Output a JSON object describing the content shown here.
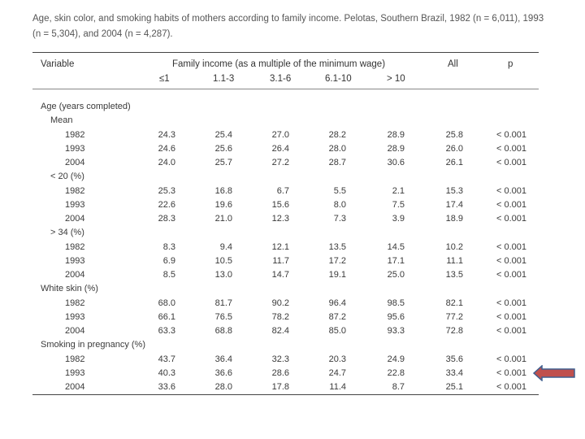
{
  "caption": "Age, skin color, and smoking habits of mothers according to family income. Pelotas, Southern Brazil, 1982 (n = 6,011), 1993 (n = 5,304), and 2004 (n = 4,287).",
  "header": {
    "variable": "Variable",
    "group": "Family income (as a multiple of the minimum wage)",
    "all": "All",
    "p": "p",
    "income_cols": [
      "≤1",
      "1.1-3",
      "3.1-6",
      "6.1-10",
      "> 10"
    ]
  },
  "rows": [
    {
      "label": "Age (years completed)",
      "level": 0,
      "values": []
    },
    {
      "label": "Mean",
      "level": 1,
      "values": []
    },
    {
      "label": "1982",
      "level": 2,
      "values": [
        "24.3",
        "25.4",
        "27.0",
        "28.2",
        "28.9",
        "25.8",
        "< 0.001"
      ]
    },
    {
      "label": "1993",
      "level": 2,
      "values": [
        "24.6",
        "25.6",
        "26.4",
        "28.0",
        "28.9",
        "26.0",
        "< 0.001"
      ]
    },
    {
      "label": "2004",
      "level": 2,
      "values": [
        "24.0",
        "25.7",
        "27.2",
        "28.7",
        "30.6",
        "26.1",
        "< 0.001"
      ]
    },
    {
      "label": "< 20 (%)",
      "level": 1,
      "values": []
    },
    {
      "label": "1982",
      "level": 2,
      "values": [
        "25.3",
        "16.8",
        "6.7",
        "5.5",
        "2.1",
        "15.3",
        "< 0.001"
      ]
    },
    {
      "label": "1993",
      "level": 2,
      "values": [
        "22.6",
        "19.6",
        "15.6",
        "8.0",
        "7.5",
        "17.4",
        "< 0.001"
      ]
    },
    {
      "label": "2004",
      "level": 2,
      "values": [
        "28.3",
        "21.0",
        "12.3",
        "7.3",
        "3.9",
        "18.9",
        "< 0.001"
      ]
    },
    {
      "label": "> 34 (%)",
      "level": 1,
      "values": []
    },
    {
      "label": "1982",
      "level": 2,
      "values": [
        "8.3",
        "9.4",
        "12.1",
        "13.5",
        "14.5",
        "10.2",
        "< 0.001"
      ]
    },
    {
      "label": "1993",
      "level": 2,
      "values": [
        "6.9",
        "10.5",
        "11.7",
        "17.2",
        "17.1",
        "11.1",
        "< 0.001"
      ]
    },
    {
      "label": "2004",
      "level": 2,
      "values": [
        "8.5",
        "13.0",
        "14.7",
        "19.1",
        "25.0",
        "13.5",
        "< 0.001"
      ]
    },
    {
      "label": "White skin (%)",
      "level": 0,
      "values": []
    },
    {
      "label": "1982",
      "level": 2,
      "values": [
        "68.0",
        "81.7",
        "90.2",
        "96.4",
        "98.5",
        "82.1",
        "< 0.001"
      ]
    },
    {
      "label": "1993",
      "level": 2,
      "values": [
        "66.1",
        "76.5",
        "78.2",
        "87.2",
        "95.6",
        "77.2",
        "< 0.001"
      ]
    },
    {
      "label": "2004",
      "level": 2,
      "values": [
        "63.3",
        "68.8",
        "82.4",
        "85.0",
        "93.3",
        "72.8",
        "< 0.001"
      ]
    },
    {
      "label": "Smoking in pregnancy (%)",
      "level": 0,
      "values": []
    },
    {
      "label": "1982",
      "level": 2,
      "values": [
        "43.7",
        "36.4",
        "32.3",
        "20.3",
        "24.9",
        "35.6",
        "< 0.001"
      ]
    },
    {
      "label": "1993",
      "level": 2,
      "values": [
        "40.3",
        "36.6",
        "28.6",
        "24.7",
        "22.8",
        "33.4",
        "< 0.001"
      ]
    },
    {
      "label": "2004",
      "level": 2,
      "values": [
        "33.6",
        "28.0",
        "17.8",
        "11.4",
        "8.7",
        "25.1",
        "< 0.001"
      ]
    }
  ],
  "colors": {
    "arrow_fill": "#c0504d",
    "arrow_stroke": "#3f5f8f"
  }
}
